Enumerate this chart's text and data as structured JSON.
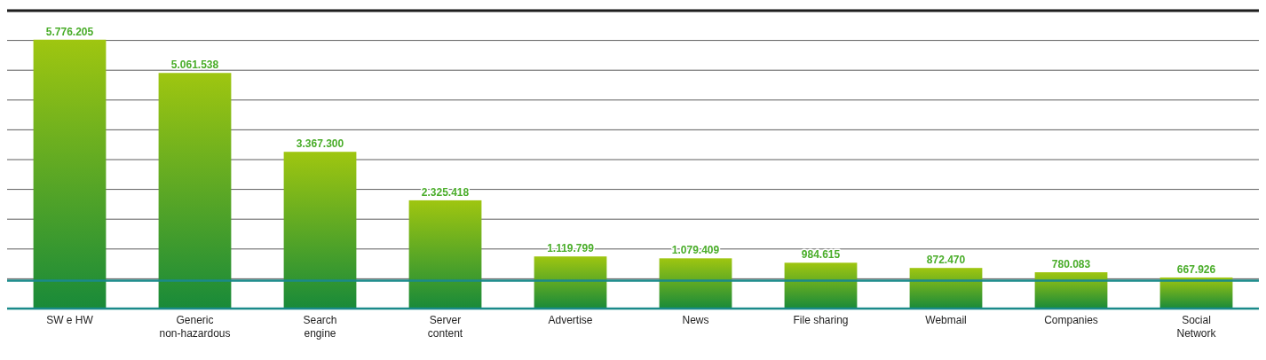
{
  "chart_data": {
    "type": "bar",
    "categories": [
      "SW e HW",
      "Generic non-hazardous",
      "Search engine",
      "Server content",
      "Advertise",
      "News",
      "File sharing",
      "Webmail",
      "Companies",
      "Social Network"
    ],
    "values": [
      5776205,
      5061538,
      3367300,
      2325418,
      1119799,
      1079409,
      984615,
      872470,
      780083,
      667926
    ],
    "value_labels": [
      "5.776.205",
      "5.061.538",
      "3.367.300",
      "2.325.418",
      "1.119.799",
      "1.079.409",
      "984.615",
      "872.470",
      "780.083",
      "667.926"
    ],
    "color": "#3fa535",
    "ylim": [
      0,
      6400000
    ],
    "yticks": [
      {
        "value": 0,
        "label": null
      },
      {
        "value": 640000,
        "label": null
      },
      {
        "value": 1280000,
        "label": null
      },
      {
        "value": 1920000,
        "label": null
      },
      {
        "value": 2560000,
        "label": null
      },
      {
        "value": 3200000,
        "label": null
      },
      {
        "value": 3840000,
        "label": null
      },
      {
        "value": 4480000,
        "label": null
      },
      {
        "value": 5120000,
        "label": null
      },
      {
        "value": 5760000,
        "label": null
      },
      {
        "value": 6400000,
        "label": null
      }
    ],
    "grid": "y",
    "tick_labels": "x",
    "ref_lines": [
      {
        "axis": "y",
        "value": 600000,
        "color": "#1a8a8a"
      }
    ]
  }
}
